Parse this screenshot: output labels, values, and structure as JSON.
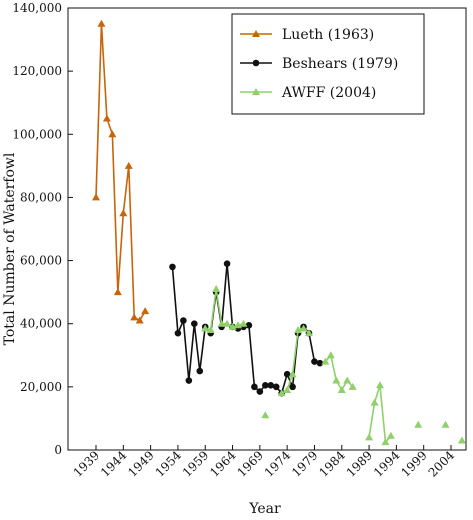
{
  "chart_data": {
    "type": "line",
    "title": "",
    "xlabel": "Year",
    "ylabel": "Total Number of Waterfowl",
    "xlim": [
      1938,
      2005
    ],
    "ylim": [
      0,
      140000
    ],
    "x_ticks": [
      1939,
      1944,
      1949,
      1954,
      1959,
      1964,
      1969,
      1974,
      1979,
      1984,
      1989,
      1994,
      1999,
      2004
    ],
    "y_ticks": [
      0,
      20000,
      40000,
      60000,
      80000,
      100000,
      120000,
      140000
    ],
    "y_tick_labels": [
      "0",
      "20,000",
      "40,000",
      "60,000",
      "80,000",
      "100,000",
      "120,000",
      "140,000"
    ],
    "grid": false,
    "legend_position": "top-right",
    "series": [
      {
        "name": "Lueth (1963)",
        "color": "#c8640a",
        "marker": "triangle",
        "segments": [
          [
            [
              1939,
              80000
            ],
            [
              1940,
              135000
            ],
            [
              1941,
              105000
            ],
            [
              1942,
              100000
            ],
            [
              1943,
              50000
            ],
            [
              1944,
              75000
            ],
            [
              1945,
              90000
            ],
            [
              1946,
              42000
            ],
            [
              1947,
              41000
            ],
            [
              1948,
              44000
            ]
          ]
        ]
      },
      {
        "name": "Beshears (1979)",
        "color": "#111111",
        "marker": "circle",
        "segments": [
          [
            [
              1953,
              58000
            ],
            [
              1954,
              37000
            ],
            [
              1955,
              41000
            ],
            [
              1956,
              22000
            ],
            [
              1957,
              40000
            ],
            [
              1958,
              25000
            ],
            [
              1959,
              39000
            ],
            [
              1960,
              37000
            ],
            [
              1961,
              50000
            ],
            [
              1962,
              39000
            ],
            [
              1963,
              59000
            ],
            [
              1964,
              39000
            ],
            [
              1965,
              38500
            ],
            [
              1966,
              39000
            ],
            [
              1967,
              39500
            ],
            [
              1968,
              20000
            ],
            [
              1969,
              18500
            ],
            [
              1970,
              20500
            ],
            [
              1971,
              20500
            ],
            [
              1972,
              20000
            ],
            [
              1973,
              18000
            ],
            [
              1974,
              24000
            ],
            [
              1975,
              20000
            ],
            [
              1976,
              37000
            ],
            [
              1977,
              39000
            ],
            [
              1978,
              37000
            ],
            [
              1979,
              28000
            ],
            [
              1980,
              27500
            ]
          ]
        ]
      },
      {
        "name": "AWFF (2004)",
        "color": "#8fd06a",
        "marker": "triangle",
        "segments": [
          [
            [
              1959,
              38500
            ],
            [
              1960,
              38000
            ],
            [
              1961,
              51000
            ],
            [
              1962,
              40000
            ],
            [
              1963,
              40000
            ],
            [
              1964,
              39000
            ],
            [
              1965,
              39500
            ],
            [
              1966,
              40000
            ]
          ],
          [
            [
              1970,
              11000
            ]
          ],
          [
            [
              1973,
              18000
            ],
            [
              1974,
              19000
            ],
            [
              1975,
              24000
            ],
            [
              1976,
              38000
            ],
            [
              1977,
              38500
            ],
            [
              1978,
              37000
            ]
          ],
          [
            [
              1981,
              28000
            ],
            [
              1982,
              30000
            ],
            [
              1983,
              22000
            ],
            [
              1984,
              19000
            ],
            [
              1985,
              22000
            ],
            [
              1986,
              20000
            ]
          ],
          [
            [
              1989,
              4000
            ],
            [
              1990,
              15000
            ],
            [
              1991,
              20500
            ],
            [
              1992,
              2500
            ],
            [
              1993,
              4500
            ]
          ],
          [
            [
              1998,
              8000
            ]
          ],
          [
            [
              2003,
              8000
            ]
          ],
          [
            [
              2006,
              3000
            ]
          ]
        ]
      }
    ]
  }
}
